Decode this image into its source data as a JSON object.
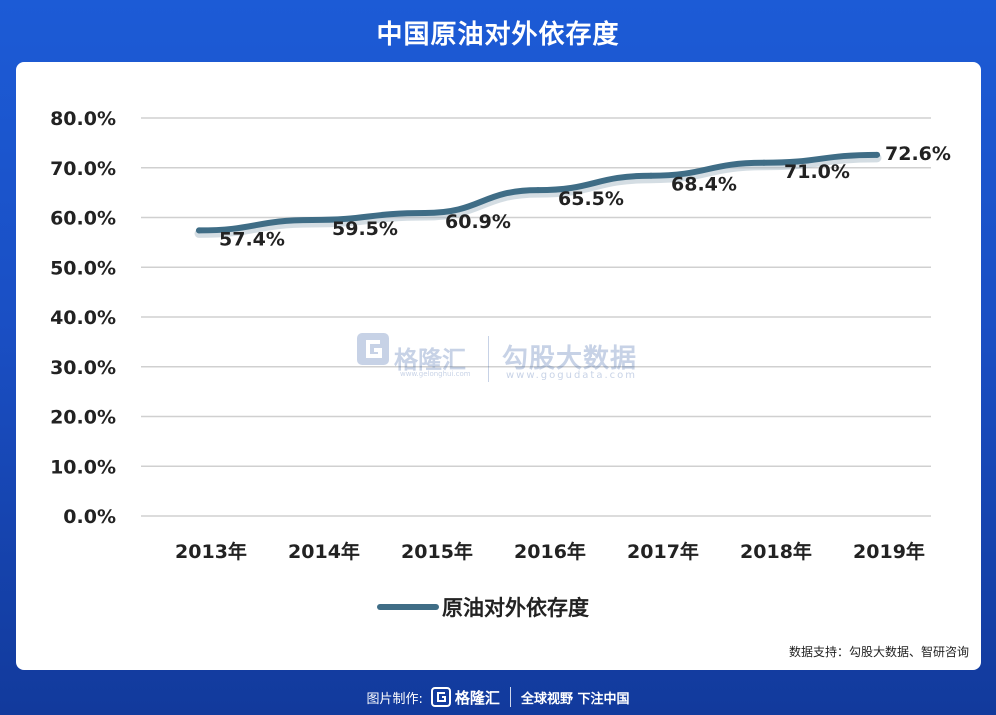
{
  "header": {
    "title": "中国原油对外依存度"
  },
  "chart_data": {
    "type": "line",
    "title": "中国原油对外依存度",
    "categories": [
      "2013年",
      "2014年",
      "2015年",
      "2016年",
      "2017年",
      "2018年",
      "2019年"
    ],
    "series": [
      {
        "name": "原油对外依存度",
        "values": [
          57.4,
          59.5,
          60.9,
          65.5,
          68.4,
          71.0,
          72.6
        ],
        "color": "#3f6d86"
      }
    ],
    "data_labels": [
      "57.4%",
      "59.5%",
      "60.9%",
      "65.5%",
      "68.4%",
      "71.0%",
      "72.6%"
    ],
    "y_ticks": [
      "0.0%",
      "10.0%",
      "20.0%",
      "30.0%",
      "40.0%",
      "50.0%",
      "60.0%",
      "70.0%",
      "80.0%"
    ],
    "ylim": [
      0,
      80
    ],
    "xlabel": "",
    "ylabel": "",
    "grid": true,
    "legend_position": "bottom"
  },
  "watermark": {
    "brand": "格隆汇",
    "brand_url": "www.gelonghui.com",
    "partner": "勾股大数据",
    "partner_url": "www.gogudata.com"
  },
  "source_note": "数据支持：勾股大数据、智研咨询",
  "footer": {
    "credit": "图片制作:",
    "brand": "格隆汇",
    "slogan": "全球视野 下注中国"
  },
  "colors": {
    "background": "#1a4fc4",
    "line": "#3f6d86",
    "grid": "#d0d0d0"
  }
}
